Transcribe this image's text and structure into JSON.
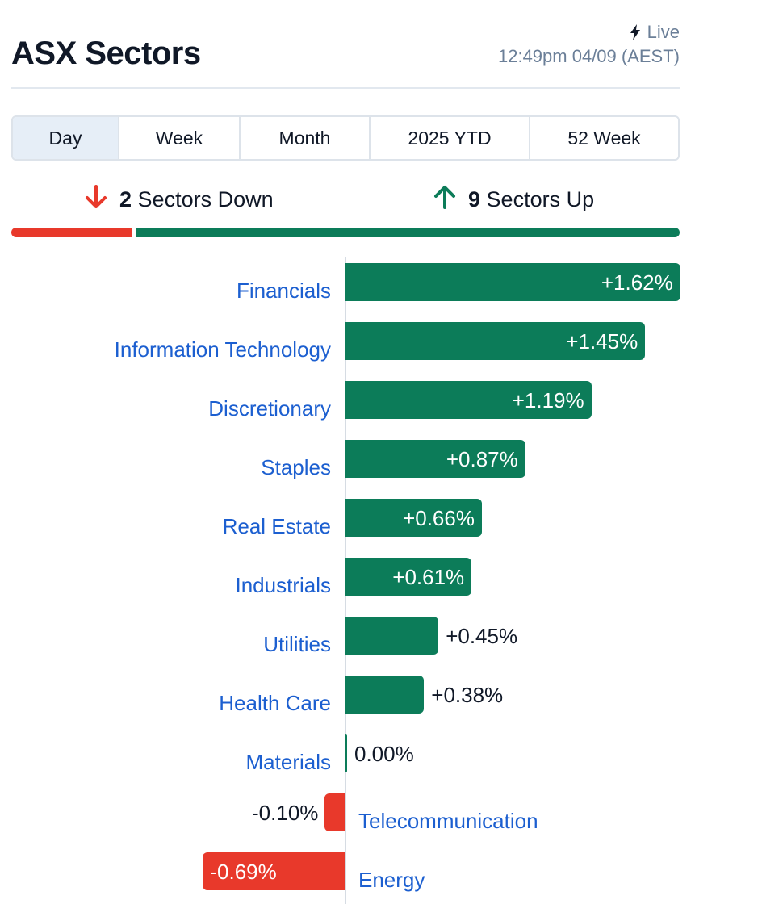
{
  "header": {
    "title": "ASX Sectors",
    "live_label": "Live",
    "live_icon": "lightning-bolt-icon",
    "timestamp": "12:49pm 04/09 (AEST)"
  },
  "tabs": [
    {
      "label": "Day",
      "active": true
    },
    {
      "label": "Week",
      "active": false
    },
    {
      "label": "Month",
      "active": false
    },
    {
      "label": "2025 YTD",
      "active": false
    },
    {
      "label": "52 Week",
      "active": false
    }
  ],
  "summary": {
    "down": {
      "count": "2",
      "label": "Sectors Down",
      "icon": "arrow-down-icon",
      "color": "#e8392b"
    },
    "up": {
      "count": "9",
      "label": "Sectors Up",
      "icon": "arrow-up-icon",
      "color": "#0c7c59"
    }
  },
  "colors": {
    "up": "#0c7c59",
    "down": "#e8392b",
    "link": "#1c5fd0"
  },
  "chart_data": {
    "type": "bar",
    "orientation": "horizontal",
    "categories": [
      "Financials",
      "Information Technology",
      "Discretionary",
      "Staples",
      "Real Estate",
      "Industrials",
      "Utilities",
      "Health Care",
      "Materials",
      "Telecommunication",
      "Energy"
    ],
    "values": [
      1.62,
      1.45,
      1.19,
      0.87,
      0.66,
      0.61,
      0.45,
      0.38,
      0.0,
      -0.1,
      -0.69
    ],
    "value_labels": [
      "+1.62%",
      "+1.45%",
      "+1.19%",
      "+0.87%",
      "+0.66%",
      "+0.61%",
      "+0.45%",
      "+0.38%",
      "0.00%",
      "-0.10%",
      "-0.69%"
    ],
    "unit": "%",
    "grid": false,
    "legend": "none"
  }
}
